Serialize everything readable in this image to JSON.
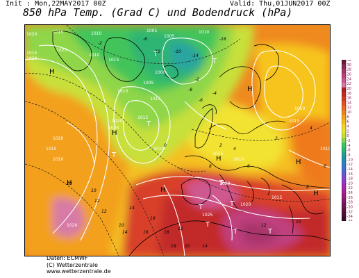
{
  "header": {
    "init_text": "Init : Mon,22MAY2017 00Z",
    "valid_text": "Valid: Thu,01JUN2017 00Z",
    "title": "850 hPa Temp. (Grad C) und Bodendruck (hPa)"
  },
  "footer": {
    "line1": "Daten: ECMWF",
    "line2": "(C) Wetterzentrale",
    "line3": "www.wetterzentrale.de"
  },
  "legend": {
    "ticks": [
      "32",
      "30",
      "28",
      "26",
      "24",
      "22",
      "20",
      "18",
      "16",
      "14",
      "12",
      "10",
      "8",
      "6",
      "4",
      "2",
      "0",
      "-2",
      "-4",
      "-6",
      "-8",
      "-10",
      "-12",
      "-14",
      "-16",
      "-18",
      "-20",
      "-22",
      "-24",
      "-26",
      "-28",
      "-30",
      "-32",
      "-34",
      "-36"
    ],
    "colors": [
      "#6b1c3c",
      "#8a2a50",
      "#a8356a",
      "#c0407e",
      "#cf5891",
      "#d77aa6",
      "#b01f24",
      "#c42a23",
      "#d73a22",
      "#e4531f",
      "#ee6b1d",
      "#f0851a",
      "#f3a01a",
      "#f6bb1e",
      "#f4d627",
      "#e8e42e",
      "#c4e03b",
      "#86d64a",
      "#3fc85b",
      "#2bb872",
      "#22a38d",
      "#2090a8",
      "#2a83c2",
      "#3f71d0",
      "#5a5dd6",
      "#7b48d6",
      "#9636c9",
      "#a629b3",
      "#a8209a",
      "#9c1c84",
      "#8a196e",
      "#721559",
      "#5e1247",
      "#4b0f38",
      "#3a0c2b"
    ],
    "label_color": "#9a1a5a"
  },
  "map": {
    "pressure_labels": [
      {
        "t": "1020"
      },
      {
        "t": "1015"
      },
      {
        "t": "1010"
      },
      {
        "t": "1005"
      },
      {
        "t": "1005"
      },
      {
        "t": "1010"
      },
      {
        "t": "1015"
      },
      {
        "t": "1020"
      },
      {
        "t": "1025"
      },
      {
        "t": "1010"
      },
      {
        "t": "1015"
      },
      {
        "t": "1000"
      },
      {
        "t": "1005"
      },
      {
        "t": "1010"
      },
      {
        "t": "1015"
      },
      {
        "t": "1020"
      },
      {
        "t": "1015"
      },
      {
        "t": "1025"
      },
      {
        "t": "1020"
      },
      {
        "t": "1015"
      },
      {
        "t": "1010"
      },
      {
        "t": "1010"
      },
      {
        "t": "1015"
      },
      {
        "t": "1010"
      },
      {
        "t": "1020"
      },
      {
        "t": "1025"
      },
      {
        "t": "1020"
      },
      {
        "t": "1015"
      },
      {
        "t": "1010"
      },
      {
        "t": "1015"
      },
      {
        "t": "1020"
      },
      {
        "t": "1010"
      }
    ],
    "temp_labels": [
      {
        "t": "-2"
      },
      {
        "t": "-6"
      },
      {
        "t": "-10"
      },
      {
        "t": "-14"
      },
      {
        "t": "-16"
      },
      {
        "t": "-10"
      },
      {
        "t": "-8"
      },
      {
        "t": "-6"
      },
      {
        "t": "-4"
      },
      {
        "t": "-2"
      },
      {
        "t": "0"
      },
      {
        "t": "2"
      },
      {
        "t": "4"
      },
      {
        "t": "6"
      },
      {
        "t": "8"
      },
      {
        "t": "10"
      },
      {
        "t": "12"
      },
      {
        "t": "14"
      },
      {
        "t": "16"
      },
      {
        "t": "18"
      },
      {
        "t": "20"
      },
      {
        "t": "10"
      },
      {
        "t": "12"
      },
      {
        "t": "14"
      },
      {
        "t": "12"
      },
      {
        "t": "10"
      },
      {
        "t": "8"
      },
      {
        "t": "6"
      },
      {
        "t": "4"
      },
      {
        "t": "2"
      },
      {
        "t": "10"
      },
      {
        "t": "12"
      },
      {
        "t": "14"
      },
      {
        "t": "16"
      },
      {
        "t": "18"
      }
    ],
    "highs": [
      "H",
      "H",
      "H",
      "H",
      "H",
      "H",
      "H",
      "H"
    ],
    "lows": [
      "T",
      "T",
      "T",
      "T",
      "T",
      "T",
      "T",
      "T",
      "T",
      "T"
    ]
  }
}
